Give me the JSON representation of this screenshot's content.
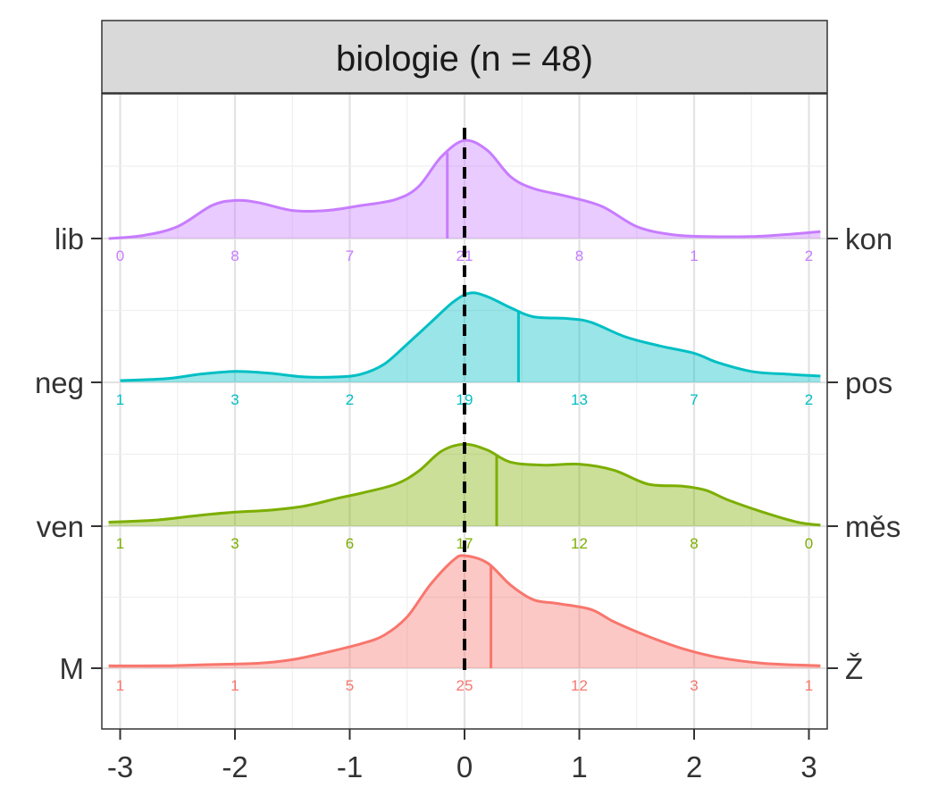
{
  "chart_data": {
    "type": "ridgeline-density",
    "title": "biologie (n = 48)",
    "xlim": [
      -3.1,
      3.1
    ],
    "x_ticks": [
      -3,
      -2,
      -1,
      0,
      1,
      2,
      3
    ],
    "x_tick_labels": [
      "-3",
      "-2",
      "-1",
      "0",
      "1",
      "2",
      "3"
    ],
    "reference_line": {
      "x": 0,
      "style": "dashed"
    },
    "grid": true,
    "series": [
      {
        "left_label": "lib",
        "right_label": "kon",
        "color": "#C77CFF",
        "mean": -0.15,
        "count_x": [
          -3,
          -2,
          -1,
          0,
          1,
          2,
          3
        ],
        "counts": [
          "0",
          "8",
          "7",
          "21",
          "8",
          "1",
          "2"
        ],
        "density": [
          [
            -3.1,
            0.0
          ],
          [
            -2.8,
            0.03
          ],
          [
            -2.5,
            0.12
          ],
          [
            -2.2,
            0.33
          ],
          [
            -2.0,
            0.38
          ],
          [
            -1.8,
            0.36
          ],
          [
            -1.5,
            0.28
          ],
          [
            -1.2,
            0.28
          ],
          [
            -0.9,
            0.33
          ],
          [
            -0.6,
            0.39
          ],
          [
            -0.4,
            0.52
          ],
          [
            -0.2,
            0.82
          ],
          [
            0.0,
            0.98
          ],
          [
            0.2,
            0.88
          ],
          [
            0.4,
            0.62
          ],
          [
            0.6,
            0.5
          ],
          [
            0.9,
            0.42
          ],
          [
            1.2,
            0.32
          ],
          [
            1.5,
            0.12
          ],
          [
            1.8,
            0.04
          ],
          [
            2.1,
            0.02
          ],
          [
            2.5,
            0.02
          ],
          [
            2.8,
            0.04
          ],
          [
            3.1,
            0.07
          ]
        ]
      },
      {
        "left_label": "neg",
        "right_label": "pos",
        "color": "#00BFC4",
        "mean": 0.47,
        "count_x": [
          -3,
          -2,
          -1,
          0,
          1,
          2,
          3
        ],
        "counts": [
          "1",
          "3",
          "2",
          "19",
          "13",
          "7",
          "2"
        ],
        "density": [
          [
            -3.0,
            0.02
          ],
          [
            -2.6,
            0.04
          ],
          [
            -2.3,
            0.09
          ],
          [
            -2.0,
            0.12
          ],
          [
            -1.7,
            0.1
          ],
          [
            -1.4,
            0.06
          ],
          [
            -1.1,
            0.06
          ],
          [
            -0.9,
            0.09
          ],
          [
            -0.7,
            0.2
          ],
          [
            -0.5,
            0.42
          ],
          [
            -0.3,
            0.65
          ],
          [
            -0.1,
            0.88
          ],
          [
            0.05,
            0.98
          ],
          [
            0.2,
            0.94
          ],
          [
            0.4,
            0.82
          ],
          [
            0.6,
            0.72
          ],
          [
            0.9,
            0.7
          ],
          [
            1.1,
            0.66
          ],
          [
            1.4,
            0.5
          ],
          [
            1.7,
            0.4
          ],
          [
            2.0,
            0.32
          ],
          [
            2.2,
            0.22
          ],
          [
            2.5,
            0.12
          ],
          [
            2.8,
            0.09
          ],
          [
            3.1,
            0.07
          ]
        ]
      },
      {
        "left_label": "ven",
        "right_label": "měs",
        "color": "#7CAE00",
        "mean": 0.28,
        "count_x": [
          -3,
          -2,
          -1,
          0,
          1,
          2,
          3
        ],
        "counts": [
          "1",
          "3",
          "6",
          "17",
          "12",
          "8",
          "0"
        ],
        "density": [
          [
            -3.1,
            0.04
          ],
          [
            -2.7,
            0.06
          ],
          [
            -2.3,
            0.11
          ],
          [
            -2.0,
            0.14
          ],
          [
            -1.7,
            0.16
          ],
          [
            -1.4,
            0.2
          ],
          [
            -1.1,
            0.28
          ],
          [
            -0.9,
            0.33
          ],
          [
            -0.6,
            0.42
          ],
          [
            -0.4,
            0.55
          ],
          [
            -0.2,
            0.75
          ],
          [
            0.0,
            0.82
          ],
          [
            0.2,
            0.76
          ],
          [
            0.4,
            0.64
          ],
          [
            0.7,
            0.61
          ],
          [
            1.0,
            0.62
          ],
          [
            1.3,
            0.56
          ],
          [
            1.6,
            0.42
          ],
          [
            1.9,
            0.4
          ],
          [
            2.1,
            0.36
          ],
          [
            2.3,
            0.26
          ],
          [
            2.6,
            0.14
          ],
          [
            2.9,
            0.04
          ],
          [
            3.1,
            0.01
          ]
        ]
      },
      {
        "left_label": "M",
        "right_label": "Ž",
        "color": "#F8766D",
        "mean": 0.23,
        "count_x": [
          -3,
          -2,
          -1,
          0,
          1,
          2,
          3
        ],
        "counts": [
          "1",
          "1",
          "5",
          "25",
          "12",
          "3",
          "1"
        ],
        "density": [
          [
            -3.1,
            0.02
          ],
          [
            -2.6,
            0.02
          ],
          [
            -2.2,
            0.03
          ],
          [
            -1.8,
            0.04
          ],
          [
            -1.5,
            0.07
          ],
          [
            -1.2,
            0.13
          ],
          [
            -0.9,
            0.2
          ],
          [
            -0.7,
            0.27
          ],
          [
            -0.5,
            0.42
          ],
          [
            -0.3,
            0.68
          ],
          [
            -0.1,
            0.88
          ],
          [
            0.0,
            0.92
          ],
          [
            0.2,
            0.86
          ],
          [
            0.4,
            0.68
          ],
          [
            0.6,
            0.56
          ],
          [
            0.8,
            0.53
          ],
          [
            1.1,
            0.48
          ],
          [
            1.3,
            0.38
          ],
          [
            1.6,
            0.26
          ],
          [
            1.9,
            0.16
          ],
          [
            2.2,
            0.09
          ],
          [
            2.6,
            0.04
          ],
          [
            3.1,
            0.02
          ]
        ]
      }
    ]
  }
}
